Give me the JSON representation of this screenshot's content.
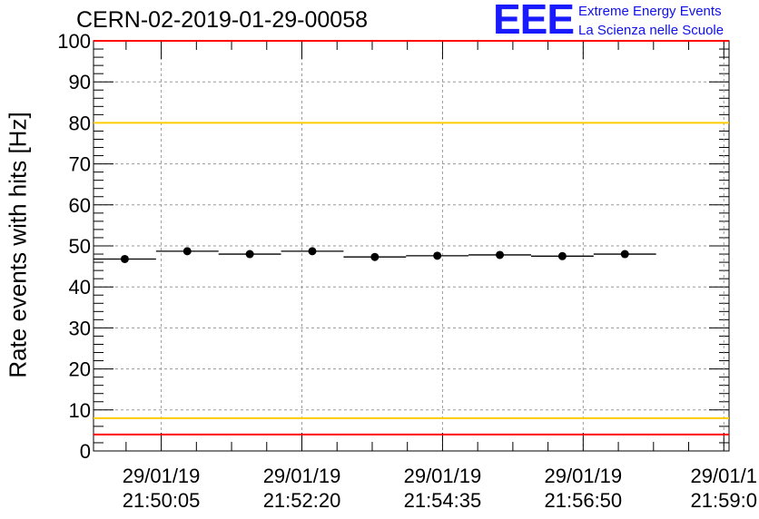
{
  "header": {
    "title": "CERN-02-2019-01-29-00058",
    "logo_text": "EEE",
    "logo_line1": "Extreme Energy Events",
    "logo_line2": "La Scienza nelle Scuole"
  },
  "chart_data": {
    "type": "scatter",
    "title": "CERN-02-2019-01-29-00058",
    "ylabel": "Rate events with hits [Hz]",
    "xlabel": "",
    "ylim": [
      0,
      100
    ],
    "y_ticks": [
      0,
      10,
      20,
      30,
      40,
      50,
      60,
      70,
      80,
      90,
      100
    ],
    "x_axis": {
      "range": [
        "21:49:00",
        "21:59:10"
      ],
      "tick_times": [
        "21:50:05",
        "21:52:20",
        "21:54:35",
        "21:56:50",
        "21:59:05"
      ],
      "tick_label_line1": [
        "29/01/19",
        "29/01/19",
        "29/01/19",
        "29/01/19",
        "29/01/1"
      ],
      "tick_label_line2": [
        "21:50:05",
        "21:52:20",
        "21:54:35",
        "21:56:50",
        "21:59:0"
      ]
    },
    "grid": true,
    "series": [
      {
        "points": [
          {
            "x_start": "21:49:00",
            "x_end": "21:50:00",
            "x": "21:49:30",
            "y": 46.8
          },
          {
            "x_start": "21:50:00",
            "x_end": "21:51:00",
            "x": "21:50:30",
            "y": 48.7
          },
          {
            "x_start": "21:51:00",
            "x_end": "21:52:00",
            "x": "21:51:30",
            "y": 48.0
          },
          {
            "x_start": "21:52:00",
            "x_end": "21:53:00",
            "x": "21:52:30",
            "y": 48.7
          },
          {
            "x_start": "21:53:00",
            "x_end": "21:54:00",
            "x": "21:53:30",
            "y": 47.3
          },
          {
            "x_start": "21:54:00",
            "x_end": "21:55:00",
            "x": "21:54:30",
            "y": 47.6
          },
          {
            "x_start": "21:55:00",
            "x_end": "21:56:00",
            "x": "21:55:30",
            "y": 47.8
          },
          {
            "x_start": "21:56:00",
            "x_end": "21:57:00",
            "x": "21:56:30",
            "y": 47.5
          },
          {
            "x_start": "21:57:00",
            "x_end": "21:58:00",
            "x": "21:57:30",
            "y": 48.0
          }
        ]
      }
    ],
    "reference_lines": [
      {
        "y": 100,
        "color": "#ff0000"
      },
      {
        "y": 80,
        "color": "#ffcc00"
      },
      {
        "y": 8,
        "color": "#ffcc00"
      },
      {
        "y": 4,
        "color": "#ff0000"
      }
    ]
  }
}
